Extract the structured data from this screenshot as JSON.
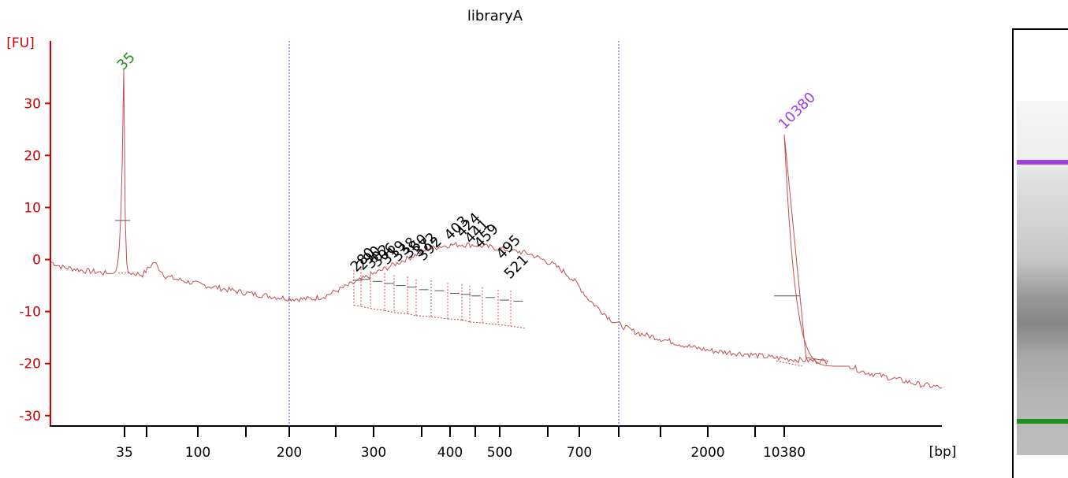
{
  "chart_data": {
    "type": "line",
    "title": "libraryA",
    "ylabel": "[FU]",
    "xlabel": "[bp]",
    "ylim": [
      -32,
      42
    ],
    "yticks": [
      30,
      20,
      10,
      0,
      -10,
      -20,
      -30
    ],
    "xtick_labels": [
      "35",
      "100",
      "200",
      "300",
      "400",
      "500",
      "700",
      "2000",
      "10380"
    ],
    "grid": false,
    "colors": {
      "trace": "#c0504d",
      "axis": "#cc0000",
      "marker_lower": "#1f8f1f",
      "marker_upper": "#a040e0",
      "label": "#000000",
      "guide": "#4a4ad8"
    },
    "peak_labels": [
      {
        "label": "35",
        "color": "lower",
        "peak_fu": 36.5
      },
      {
        "label": "10380",
        "color": "upper",
        "peak_fu": 24
      },
      {
        "label": "280",
        "peak_fu": -2.5
      },
      {
        "label": "290",
        "peak_fu": -2.0
      },
      {
        "label": "302",
        "peak_fu": -1.5
      },
      {
        "label": "306",
        "peak_fu": -1.0
      },
      {
        "label": "319",
        "peak_fu": -0.5
      },
      {
        "label": "338",
        "peak_fu": 0.5
      },
      {
        "label": "360",
        "peak_fu": 1.5
      },
      {
        "label": "372",
        "peak_fu": 2.0
      },
      {
        "label": "392",
        "peak_fu": 1.5
      },
      {
        "label": "403",
        "peak_fu": 2.5
      },
      {
        "label": "424",
        "peak_fu": 2.8
      },
      {
        "label": "441",
        "peak_fu": 2.2
      },
      {
        "label": "459",
        "peak_fu": 1.5
      },
      {
        "label": "495",
        "peak_fu": -0.2
      },
      {
        "label": "521",
        "peak_fu": -2.0
      }
    ],
    "trace_fu": [
      -0.5,
      -1.5,
      -1.8,
      -2.2,
      -2.4,
      -2.7,
      36.5,
      -2.6,
      -2.9,
      -0.5,
      -3.2,
      -3.8,
      -4.3,
      -4.8,
      -5.2,
      -5.6,
      -6.0,
      -6.4,
      -6.7,
      -7.0,
      -7.3,
      -7.5,
      -7.6,
      -7.5,
      -7.0,
      -6.0,
      -5.0,
      -4.0,
      -3.0,
      -2.0,
      -1.0,
      0.0,
      1.0,
      2.0,
      2.5,
      2.8,
      2.9,
      2.8,
      2.5,
      2.2,
      1.8,
      1.5,
      1.0,
      0.0,
      -1.0,
      -2.5,
      -4.5,
      -7.5,
      -9.5,
      -11.5,
      -12.8,
      -13.8,
      -14.5,
      -15.0,
      -15.6,
      -16.2,
      -16.8,
      -17.2,
      -17.6,
      -17.8,
      -18.0,
      -18.2,
      -18.5,
      -18.8,
      -19.0,
      -19.2,
      -19.4,
      -19.5,
      -19.5,
      24.0,
      -20.5,
      -21.5,
      -22.0,
      -22.5,
      -23.0,
      -23.5,
      -24.0,
      -24.3,
      -24.6
    ]
  }
}
